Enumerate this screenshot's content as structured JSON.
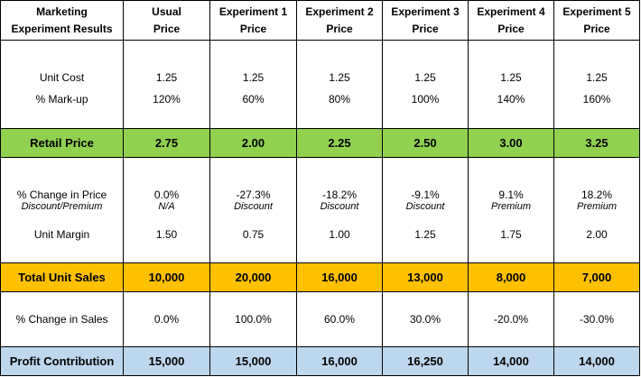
{
  "headers": [
    [
      "Marketing",
      "Experiment Results"
    ],
    [
      "Usual",
      "Price"
    ],
    [
      "Experiment 1",
      "Price"
    ],
    [
      "Experiment 2",
      "Price"
    ],
    [
      "Experiment 3",
      "Price"
    ],
    [
      "Experiment 4",
      "Price"
    ],
    [
      "Experiment 5",
      "Price"
    ]
  ],
  "rows": {
    "unit_cost": {
      "label": "Unit Cost",
      "values": [
        "1.25",
        "1.25",
        "1.25",
        "1.25",
        "1.25",
        "1.25"
      ]
    },
    "markup": {
      "label": "% Mark-up",
      "values": [
        "120%",
        "60%",
        "80%",
        "100%",
        "140%",
        "160%"
      ]
    },
    "retail_price": {
      "label": "Retail Price",
      "values": [
        "2.75",
        "2.00",
        "2.25",
        "2.50",
        "3.00",
        "3.25"
      ]
    },
    "change_price": {
      "label": "% Change in Price",
      "sublabel": "Discount/Premium",
      "values": [
        "0.0%",
        "-27.3%",
        "-18.2%",
        "-9.1%",
        "9.1%",
        "18.2%"
      ],
      "subvalues": [
        "N/A",
        "Discount",
        "Discount",
        "Discount",
        "Premium",
        "Premium"
      ]
    },
    "unit_margin": {
      "label": "Unit Margin",
      "values": [
        "1.50",
        "0.75",
        "1.00",
        "1.25",
        "1.75",
        "2.00"
      ]
    },
    "total_sales": {
      "label": "Total Unit Sales",
      "values": [
        "10,000",
        "20,000",
        "16,000",
        "13,000",
        "8,000",
        "7,000"
      ]
    },
    "change_sales": {
      "label": "% Change in Sales",
      "values": [
        "0.0%",
        "100.0%",
        "60.0%",
        "30.0%",
        "-20.0%",
        "-30.0%"
      ]
    },
    "profit": {
      "label": "Profit Contribution",
      "values": [
        "15,000",
        "15,000",
        "16,000",
        "16,250",
        "14,000",
        "14,000"
      ]
    }
  },
  "colors": {
    "retail_row": "#92d050",
    "sales_row": "#ffc000",
    "profit_row": "#bdd7ee"
  }
}
